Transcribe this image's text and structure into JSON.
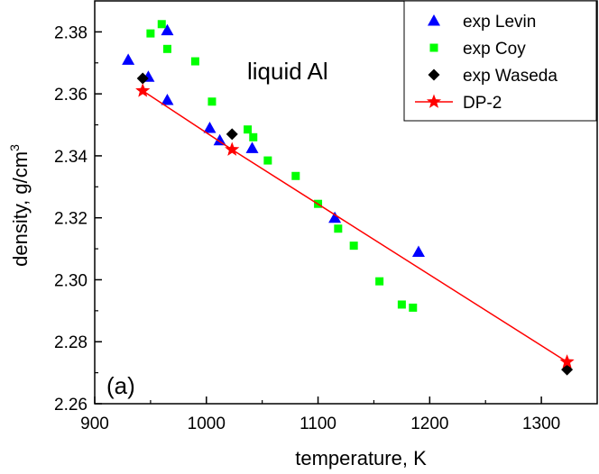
{
  "chart_data": {
    "type": "scatter",
    "xlabel": "temperature, K",
    "ylabel_main": "density, g/cm",
    "ylabel_sup": "3",
    "xlim": [
      900,
      1350
    ],
    "ylim": [
      2.26,
      2.39
    ],
    "xticks": [
      900,
      1000,
      1100,
      1200,
      1300
    ],
    "xtick_labels": [
      "900",
      "1000",
      "1100",
      "1200",
      "1300"
    ],
    "yticks": [
      2.26,
      2.28,
      2.3,
      2.32,
      2.34,
      2.36,
      2.38
    ],
    "ytick_labels": [
      "2.26",
      "2.28",
      "2.30",
      "2.32",
      "2.34",
      "2.36",
      "2.38"
    ],
    "annotation_main": "liquid Al",
    "annotation_panel": "(a)",
    "legend_position": "top-right",
    "series": [
      {
        "name": "exp Levin",
        "marker": "triangle",
        "color": "#0000ff",
        "points": [
          [
            930,
            2.371
          ],
          [
            948,
            2.3655
          ],
          [
            965,
            2.3805
          ],
          [
            965,
            2.358
          ],
          [
            1003,
            2.349
          ],
          [
            1012,
            2.345
          ],
          [
            1041,
            2.3425
          ],
          [
            1115,
            2.32
          ],
          [
            1190,
            2.309
          ]
        ]
      },
      {
        "name": "exp Coy",
        "marker": "square",
        "color": "#00ff00",
        "points": [
          [
            950,
            2.3795
          ],
          [
            960,
            2.3825
          ],
          [
            965,
            2.3745
          ],
          [
            990,
            2.3705
          ],
          [
            1005,
            2.3575
          ],
          [
            1037,
            2.3485
          ],
          [
            1042,
            2.346
          ],
          [
            1055,
            2.3385
          ],
          [
            1080,
            2.3335
          ],
          [
            1100,
            2.3245
          ],
          [
            1118,
            2.3165
          ],
          [
            1132,
            2.311
          ],
          [
            1155,
            2.2995
          ],
          [
            1175,
            2.292
          ],
          [
            1185,
            2.291
          ]
        ]
      },
      {
        "name": "exp Waseda",
        "marker": "diamond",
        "color": "#000000",
        "points": [
          [
            943,
            2.365
          ],
          [
            1023,
            2.347
          ],
          [
            1323,
            2.271
          ]
        ]
      },
      {
        "name": "DP-2",
        "marker": "star",
        "color": "#ff0000",
        "line": true,
        "points": [
          [
            943,
            2.361
          ],
          [
            1023,
            2.342
          ],
          [
            1323,
            2.2735
          ]
        ]
      }
    ]
  }
}
